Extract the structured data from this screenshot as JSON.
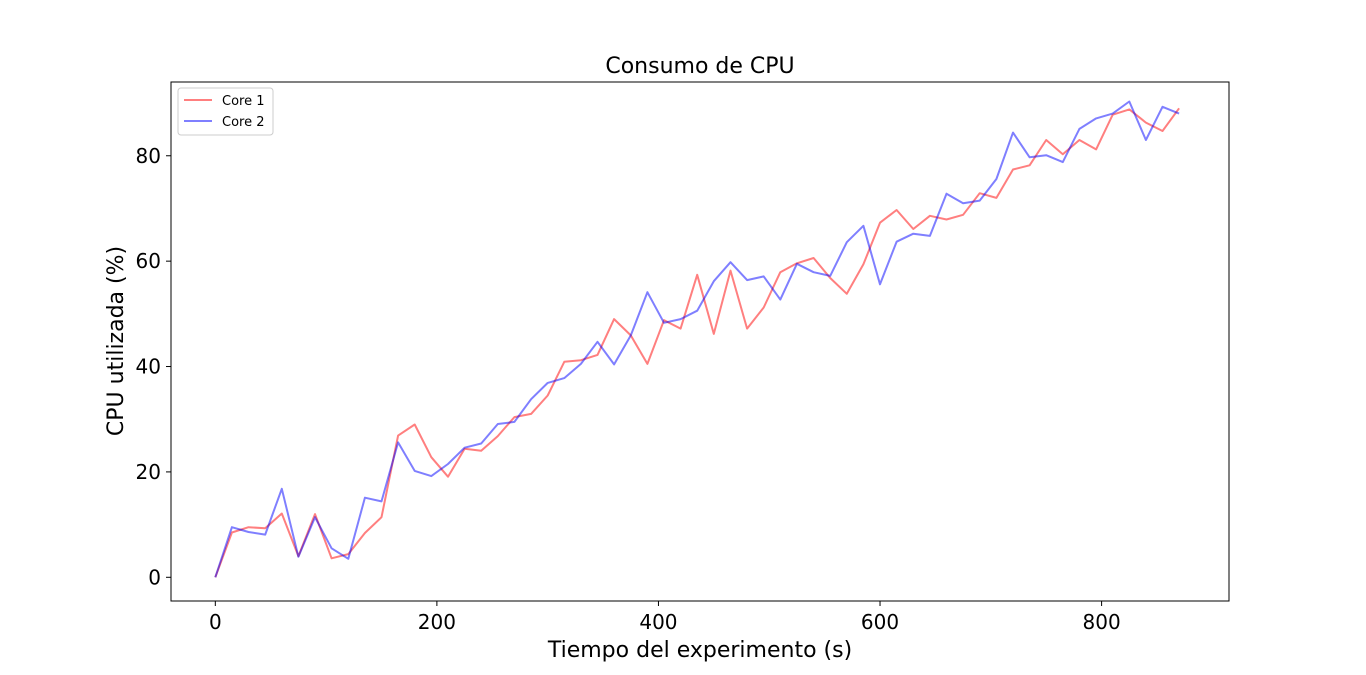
{
  "chart_data": {
    "type": "line",
    "title": "Consumo de CPU",
    "xlabel": "Tiempo del experimento (s)",
    "ylabel": "CPU utilizada (%)",
    "xlim": [
      -40,
      915
    ],
    "ylim": [
      -4.5,
      94
    ],
    "xticks": [
      0,
      200,
      400,
      600,
      800
    ],
    "yticks": [
      0,
      20,
      40,
      60,
      80
    ],
    "grid": false,
    "legend_position": "upper-left",
    "x": [
      0,
      15,
      30,
      45,
      60,
      75,
      90,
      105,
      120,
      135,
      150,
      165,
      180,
      195,
      210,
      225,
      240,
      255,
      270,
      285,
      300,
      315,
      330,
      345,
      360,
      375,
      390,
      405,
      420,
      435,
      450,
      465,
      480,
      495,
      510,
      525,
      540,
      555,
      570,
      585,
      600,
      615,
      630,
      645,
      660,
      675,
      690,
      705,
      720,
      735,
      750,
      765,
      780,
      795,
      810,
      825,
      840,
      855,
      870
    ],
    "series": [
      {
        "name": "Core 1",
        "color": "#ff0000",
        "values": [
          0,
          8.5,
          9.5,
          9.3,
          12.1,
          4.0,
          12.0,
          3.6,
          4.4,
          8.4,
          11.4,
          26.9,
          29.0,
          22.8,
          19.1,
          24.4,
          24.0,
          26.8,
          30.4,
          31.0,
          34.5,
          40.9,
          41.2,
          42.2,
          49.0,
          45.9,
          40.5,
          48.8,
          47.2,
          57.4,
          46.2,
          58.2,
          47.2,
          51.2,
          57.9,
          59.6,
          60.6,
          56.8,
          53.8,
          59.4,
          67.3,
          69.7,
          66.1,
          68.6,
          67.9,
          68.8,
          72.9,
          72.0,
          77.4,
          78.2,
          83.0,
          80.3,
          83.0,
          81.2,
          87.8,
          88.8,
          86.3,
          84.7,
          89.0
        ]
      },
      {
        "name": "Core 2",
        "color": "#0000ff",
        "values": [
          0,
          9.5,
          8.6,
          8.1,
          16.8,
          3.9,
          11.4,
          5.5,
          3.5,
          15.1,
          14.4,
          25.6,
          20.2,
          19.2,
          21.5,
          24.6,
          25.4,
          29.1,
          29.5,
          33.8,
          36.9,
          37.8,
          40.5,
          44.7,
          40.4,
          45.9,
          54.1,
          48.3,
          49.0,
          50.6,
          56.2,
          59.8,
          56.4,
          57.1,
          52.7,
          59.5,
          57.9,
          57.2,
          63.6,
          66.7,
          55.6,
          63.7,
          65.2,
          64.8,
          72.8,
          71.0,
          71.5,
          75.6,
          84.4,
          79.7,
          80.1,
          78.8,
          85.1,
          87.1,
          88.0,
          90.3,
          83.0,
          89.3,
          88.0
        ]
      }
    ]
  }
}
